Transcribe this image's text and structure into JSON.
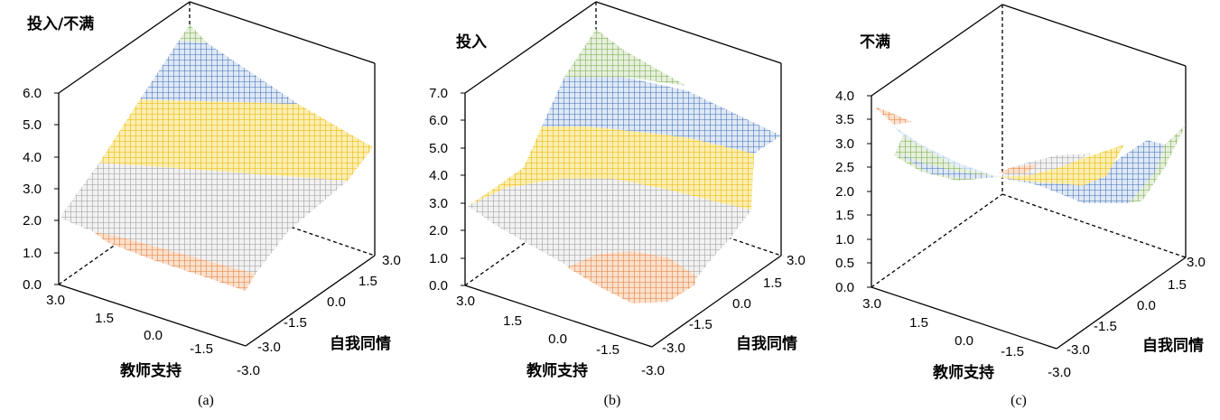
{
  "colors": {
    "orange": "#e07b39",
    "gray": "#a6a6a6",
    "yellow": "#e8b400",
    "blue": "#3f6fb5",
    "green": "#77a84a",
    "lightblue": "#9dc3e6",
    "axis": "#000000"
  },
  "chart_data": [
    {
      "type": "surface",
      "panel": "a",
      "title": "投入/不满",
      "caption": "(a)",
      "xlabel": "教师支持",
      "ylabel": "自我同情",
      "zlim": [
        0,
        6
      ],
      "z_ticks": [
        "0.0",
        "1.0",
        "2.0",
        "3.0",
        "4.0",
        "5.0",
        "6.0"
      ],
      "x_ticks": [
        "3.0",
        "1.5",
        "0.0",
        "-1.5",
        "-3.0"
      ],
      "y_ticks": [
        "-3.0",
        "-1.5",
        "0.0",
        "1.5",
        "3.0"
      ],
      "bands": [
        {
          "range": "0-1",
          "color": "orange"
        },
        {
          "range": "1-2",
          "color": "orange"
        },
        {
          "range": "2-3",
          "color": "gray"
        },
        {
          "range": "3-4",
          "color": "gray"
        },
        {
          "range": "4-5",
          "color": "yellow"
        },
        {
          "range": "5-6",
          "color": "blue"
        },
        {
          "range": "6-7",
          "color": "green"
        }
      ]
    },
    {
      "type": "surface",
      "panel": "b",
      "title": "投入",
      "caption": "(b)",
      "xlabel": "教师支持",
      "ylabel": "自我同情",
      "zlim": [
        0,
        7
      ],
      "z_ticks": [
        "0.0",
        "1.0",
        "2.0",
        "3.0",
        "4.0",
        "5.0",
        "6.0",
        "7.0"
      ],
      "x_ticks": [
        "3.0",
        "1.5",
        "0.0",
        "-1.5",
        "-3.0"
      ],
      "y_ticks": [
        "-3.0",
        "-1.5",
        "0.0",
        "1.5",
        "3.0"
      ],
      "bands": [
        {
          "range": "1-2",
          "color": "orange"
        },
        {
          "range": "2-3",
          "color": "gray"
        },
        {
          "range": "3-4",
          "color": "gray"
        },
        {
          "range": "4-5",
          "color": "yellow"
        },
        {
          "range": "5-6",
          "color": "blue"
        },
        {
          "range": "6-7",
          "color": "green"
        }
      ]
    },
    {
      "type": "surface",
      "panel": "c",
      "title": "不满",
      "caption": "(c)",
      "xlabel": "教师支持",
      "ylabel": "自我同情",
      "zlim": [
        0,
        4
      ],
      "z_ticks": [
        "0.0",
        "0.5",
        "1.0",
        "1.5",
        "2.0",
        "2.5",
        "3.0",
        "3.5",
        "4.0"
      ],
      "x_ticks": [
        "3.0",
        "1.5",
        "0.0",
        "-1.5",
        "-3.0"
      ],
      "y_ticks": [
        "-3.0",
        "-1.5",
        "0.0",
        "1.5",
        "3.0"
      ],
      "bands": [
        {
          "range": "2.0-2.5",
          "color": "green"
        },
        {
          "range": "2.5-3.0",
          "color": "blue"
        },
        {
          "range": "3.0-3.5",
          "color": "yellow"
        },
        {
          "range": "3.5-4.0",
          "color": "gray"
        },
        {
          "range": "low",
          "color": "orange"
        },
        {
          "range": "edge",
          "color": "lightblue"
        }
      ]
    }
  ]
}
